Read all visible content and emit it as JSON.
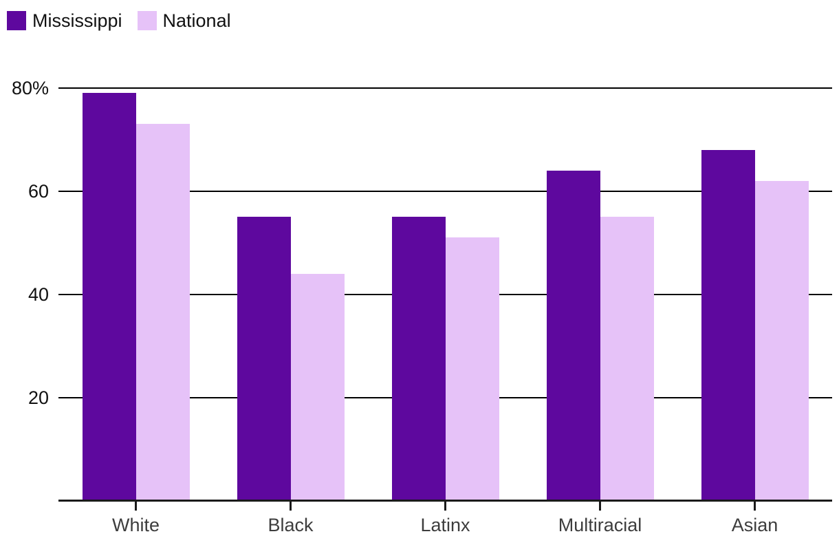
{
  "chart_data": {
    "type": "bar",
    "title": "",
    "categories": [
      "White",
      "Black",
      "Latinx",
      "Multiracial",
      "Asian"
    ],
    "series": [
      {
        "name": "Mississippi",
        "color": "#5e089e",
        "values": [
          79,
          55,
          55,
          64,
          68
        ]
      },
      {
        "name": "National",
        "color": "#e6c2f8",
        "values": [
          73,
          44,
          51,
          55,
          62
        ]
      }
    ],
    "xlabel": "",
    "ylabel": "",
    "unit": "percent",
    "ylim": [
      0,
      80
    ],
    "yticks": [
      20,
      40,
      60,
      80
    ],
    "ytick_labels": [
      "20",
      "40",
      "60",
      "80%"
    ],
    "grid": "horizontal",
    "legend_position": "top-left"
  },
  "colors": {
    "background": "#ffffff",
    "gridline": "#000000",
    "axis_line": "#1a1a1a",
    "tick": "#1a1a1a",
    "y_label_text": "#111111",
    "x_label_text": "#3d3d3d",
    "legend_text": "#111111"
  }
}
